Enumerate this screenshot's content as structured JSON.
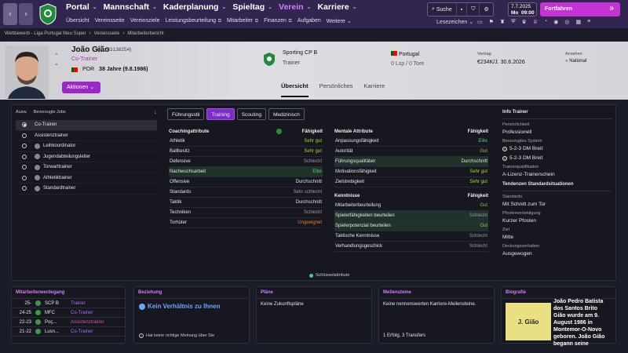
{
  "topbar": {
    "nav_back": "‹",
    "nav_forward": "›",
    "main_nav": [
      {
        "label": "Portal",
        "active": false
      },
      {
        "label": "Mannschaft",
        "active": false
      },
      {
        "label": "Kaderplanung",
        "active": false
      },
      {
        "label": "Spieltag",
        "active": false
      },
      {
        "label": "Verein",
        "active": true
      },
      {
        "label": "Karriere",
        "active": false
      }
    ],
    "sub_nav": [
      "Übersicht",
      "Vereinsseite",
      "Vereinsziele",
      "Leistungsbeurteilung",
      "Mitarbeiter",
      "Finanzen",
      "Aufgaben",
      "Weitere"
    ],
    "search_label": "Suche",
    "date_line1": "7.7.2025",
    "date_line2_day": "Mo",
    "date_line2_time": "09:00",
    "continue_label": "Fortfahren",
    "bookmarks_label": "Lesezeichen"
  },
  "breadcrumb": [
    "Wettbewerb - Liga Portugal Meu Super",
    "Vereinsseite",
    "Mitarbeiterbericht"
  ],
  "profile": {
    "name": "João Gião",
    "id_text": "(ID: 83138254)",
    "role": "Co-Trainer",
    "nation_code": "POR",
    "age_text": "38 Jahre (9.8.1986)",
    "actions_label": "Aktionen",
    "club_name": "Sporting CP B",
    "club_role": "Trainer",
    "nationality": "Portugal",
    "caps": "0 Lsp / 0 Tore",
    "contract_label": "Vertrag",
    "contract_value": "€234K/J. 30.6.2026",
    "interest_label": "Ansehen",
    "interest_value": "National",
    "tabs": [
      {
        "label": "Übersicht",
        "active": true
      },
      {
        "label": "Persönliches",
        "active": false
      },
      {
        "label": "Karriere",
        "active": false
      }
    ]
  },
  "jobs": {
    "header_col1": "Ausw.",
    "header_col2": "Bevorzugte Jobs",
    "sort_icon": "↓",
    "items": [
      {
        "label": "Co-Trainer",
        "selected": true,
        "club": true
      },
      {
        "label": "Assistenztrainer",
        "selected": false,
        "club": true
      },
      {
        "label": "Leihkoordinator",
        "selected": false,
        "club": false
      },
      {
        "label": "Jugendabteilungsleiter",
        "selected": false,
        "club": false
      },
      {
        "label": "Torwarttrainer",
        "selected": false,
        "club": false
      },
      {
        "label": "Athletiktrainer",
        "selected": false,
        "club": false
      },
      {
        "label": "Standardtrainer",
        "selected": false,
        "club": false
      }
    ]
  },
  "attr_tabs": [
    {
      "label": "Führungsstil",
      "active": false
    },
    {
      "label": "Training",
      "active": true
    },
    {
      "label": "Scouting",
      "active": false
    },
    {
      "label": "Medizinisch",
      "active": false
    }
  ],
  "coaching": {
    "title": "Coachingattribute",
    "col": "Fähigkeit",
    "rows": [
      {
        "name": "Athletik",
        "value": "Sehr gut",
        "cls": "v-great",
        "hl": false
      },
      {
        "name": "Ballbesitz",
        "value": "Sehr gut",
        "cls": "v-great",
        "hl": false
      },
      {
        "name": "Defensive",
        "value": "Schlecht",
        "cls": "v-bad",
        "hl": false
      },
      {
        "name": "Nachwuchsarbeit",
        "value": "Elite",
        "cls": "v-elite",
        "hl": true
      },
      {
        "name": "Offensive",
        "value": "Durchschnitt",
        "cls": "v-avg",
        "hl": false
      },
      {
        "name": "Standards",
        "value": "Sehr schlecht",
        "cls": "v-vbad",
        "hl": false
      },
      {
        "name": "Taktik",
        "value": "Durchschnitt",
        "cls": "v-avg",
        "hl": false
      },
      {
        "name": "Techniken",
        "value": "Schlecht",
        "cls": "v-bad",
        "hl": false
      },
      {
        "name": "Torhüter",
        "value": "Ungeeignet",
        "cls": "v-unfit",
        "hl": false
      }
    ]
  },
  "mental": {
    "title": "Mentale Attribute",
    "col": "Fähigkeit",
    "rows": [
      {
        "name": "Anpassungsfähigkeit",
        "value": "Elite",
        "cls": "v-elite",
        "hl": false
      },
      {
        "name": "Autorität",
        "value": "Gut",
        "cls": "v-good",
        "hl": false
      },
      {
        "name": "Führungsqualitäten",
        "value": "Durchschnitt",
        "cls": "v-avg",
        "hl": true
      },
      {
        "name": "Motivationsfähigkeit",
        "value": "Sehr gut",
        "cls": "v-great",
        "hl": false
      },
      {
        "name": "Zielstrebigkeit",
        "value": "Sehr gut",
        "cls": "v-great",
        "hl": false
      }
    ]
  },
  "knowledge": {
    "title": "Kenntnisse",
    "col": "Fähigkeit",
    "rows": [
      {
        "name": "Mitarbeiterbeurteilung",
        "value": "Gut",
        "cls": "v-good",
        "hl": false
      },
      {
        "name": "Spielerfähigkeiten beurteilen",
        "value": "Schlecht",
        "cls": "v-bad",
        "hl": true
      },
      {
        "name": "Spielerpotenzial beurteilen",
        "value": "Gut",
        "cls": "v-good",
        "hl": true
      },
      {
        "name": "Taktische Kenntnisse",
        "value": "Schlecht",
        "cls": "v-bad",
        "hl": false
      },
      {
        "name": "Verhandlungsgeschick",
        "value": "Schlecht",
        "cls": "v-bad",
        "hl": false
      }
    ]
  },
  "key_attrs_label": "Schlüsselattribute",
  "info": {
    "title": "Info Trainer",
    "personality_label": "Persönlichkeit",
    "personality": "Professionell",
    "systems_label": "Bevorzugtes System",
    "systems": [
      "5-2-3 DM Breit",
      "5-2-3 DM Breit"
    ],
    "qual_label": "Trainerqualifikation",
    "qual": "A-Lizenz-Trainerschein",
    "tendencies_title": "Tendenzen Standardsituationen",
    "standards_label": "Standards",
    "standards": "Mit Schnitt zum Tor",
    "post_label": "Pfostenverteidigung",
    "post": "Kurzer Pfosten",
    "target_label": "Ziel",
    "target": "Mitte",
    "cover_label": "Deckungsverhalten",
    "cover": "Ausgewogen"
  },
  "career": {
    "title": "Mitarbeiterwerdegang",
    "rows": [
      {
        "year": "25-",
        "club": "SCP B",
        "role": "Trainer",
        "pink": false
      },
      {
        "year": "24-25",
        "club": "MFC",
        "role": "Co-Trainer",
        "pink": false
      },
      {
        "year": "22-23",
        "club": "Poç...",
        "role": "Assistenztrainer",
        "pink": true
      },
      {
        "year": "21-22",
        "club": "Lusn...",
        "role": "Co-Trainer",
        "pink": false
      }
    ]
  },
  "relation": {
    "title": "Beziehung",
    "status": "Kein Verhältnis zu Ihnen",
    "note": "Hat keine richtige Meinung über Sie"
  },
  "plans": {
    "title": "Pläne",
    "text": "Keine Zukunftspläne"
  },
  "milestones": {
    "title": "Meilensteine",
    "text": "Keine nennenswerten Karriere-Meilensteine.",
    "footer": "1 Erfolg, 3 Transfers"
  },
  "bio": {
    "title": "Biografie",
    "badge": "J. Gião",
    "text": "João Pedro Batista dos Santos Brito Gião wurde am 9. August 1986 in Montemor-O-Novo geboren. João Gião begann seine"
  }
}
